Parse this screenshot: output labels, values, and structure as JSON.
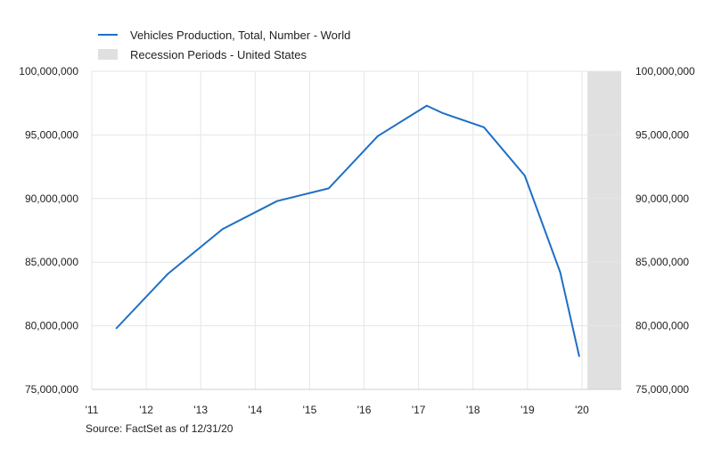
{
  "legend": {
    "series_label": "Vehicles Production, Total, Number - World",
    "recession_label": "Recession Periods - United States"
  },
  "source": "Source: FactSet as of 12/31/20",
  "chart_data": {
    "type": "line",
    "title": "",
    "xlabel": "",
    "ylabel": "",
    "ylim": [
      75000000,
      100000000
    ],
    "xlim": [
      2011.0,
      2020.72
    ],
    "y_ticks": [
      75000000,
      80000000,
      85000000,
      90000000,
      95000000,
      100000000
    ],
    "y_tick_labels": [
      "75,000,000",
      "80,000,000",
      "85,000,000",
      "90,000,000",
      "95,000,000",
      "100,000,000"
    ],
    "x_ticks": [
      2011,
      2012,
      2013,
      2014,
      2015,
      2016,
      2017,
      2018,
      2019,
      2020
    ],
    "x_tick_labels": [
      "'11",
      "'12",
      "'13",
      "'14",
      "'15",
      "'16",
      "'17",
      "'18",
      "'19",
      "'20"
    ],
    "dual_y_axis": true,
    "grid": true,
    "legend_position": "top-left",
    "colors": {
      "series": "#1f6fc5",
      "recession": "#e0e0e0",
      "grid": "#e6e6e6"
    },
    "recession_periods": [
      [
        2020.1,
        2020.72
      ]
    ],
    "series": [
      {
        "name": "Vehicles Production, Total, Number - World",
        "x": [
          2011.45,
          2012.4,
          2013.4,
          2014.4,
          2015.35,
          2016.25,
          2017.15,
          2017.45,
          2018.2,
          2018.95,
          2019.6,
          2019.95
        ],
        "y": [
          79800000,
          84100000,
          87600000,
          89800000,
          90800000,
          94900000,
          97300000,
          96700000,
          95600000,
          91800000,
          84200000,
          77600000
        ]
      }
    ]
  }
}
